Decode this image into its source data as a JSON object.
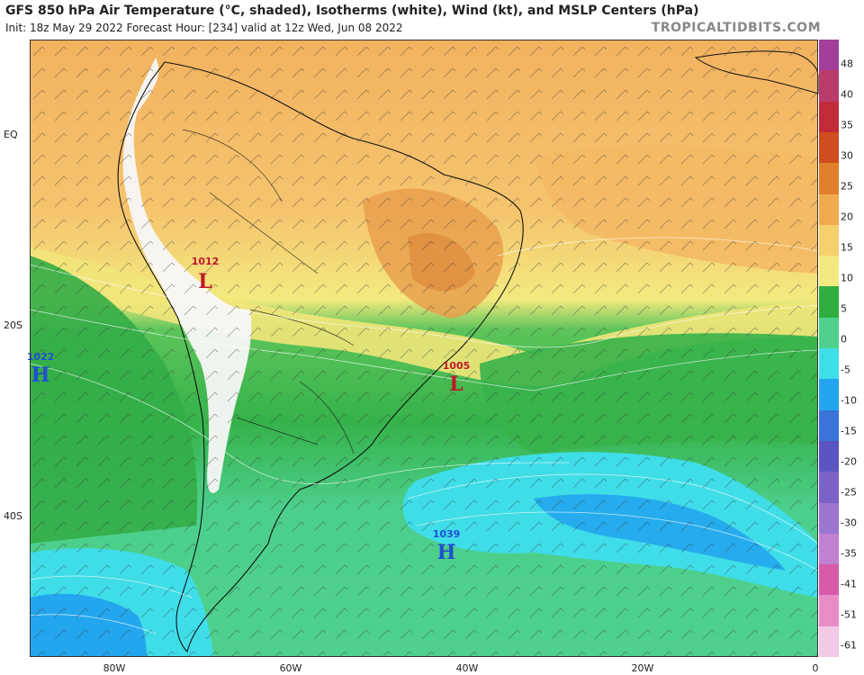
{
  "header": {
    "title": "GFS 850 hPa Air Temperature (°C, shaded), Isotherms (white), Wind (kt), and MSLP Centers (hPa)",
    "subtitle": "Init: 18z May 29 2022   Forecast Hour: [234]   valid at 12z Wed, Jun 08 2022",
    "brand": "TROPICALTIDBITS.COM"
  },
  "axes": {
    "lat_labels": [
      "EQ",
      "20S",
      "40S"
    ],
    "lon_labels": [
      "80W",
      "60W",
      "40W",
      "20W",
      "0"
    ]
  },
  "colorbar": {
    "labels": [
      "48",
      "40",
      "35",
      "30",
      "25",
      "20",
      "15",
      "10",
      "5",
      "0",
      "-5",
      "-10",
      "-15",
      "-20",
      "-25",
      "-30",
      "-35",
      "-41",
      "-51",
      "-61"
    ],
    "colors": [
      "#a33f9a",
      "#b83c6a",
      "#c02b3a",
      "#cf4d1f",
      "#e0802b",
      "#f0ab4c",
      "#f6d06d",
      "#f3ea7f",
      "#2fae3f",
      "#4fd08d",
      "#3fdde8",
      "#24a6ee",
      "#3c73d8",
      "#5a55c2",
      "#7b62c6",
      "#9b75cf",
      "#c081d3",
      "#d65aa8",
      "#e88cc8",
      "#f3c9e6"
    ]
  },
  "pressure_centers": [
    {
      "type": "L",
      "value": "1012"
    },
    {
      "type": "H",
      "value": "1022"
    },
    {
      "type": "L",
      "value": "1005"
    },
    {
      "type": "H",
      "value": "1039"
    }
  ],
  "colors": {
    "low": "#c0182a",
    "high": "#1f4fd1"
  }
}
